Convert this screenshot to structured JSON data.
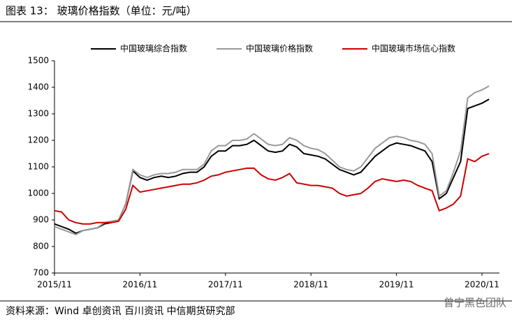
{
  "chart_data": {
    "type": "line",
    "title": "图表 13： 玻璃价格指数（单位：元/吨）",
    "source": "资料来源：Wind 卓创资讯 百川资讯 中信期货研究部",
    "watermark": "曾宁黑色团队",
    "categories": [
      "2015/11",
      null,
      null,
      null,
      null,
      null,
      null,
      null,
      null,
      null,
      null,
      null,
      "2016/11",
      null,
      null,
      null,
      null,
      null,
      null,
      null,
      null,
      null,
      null,
      null,
      "2017/11",
      null,
      null,
      null,
      null,
      null,
      null,
      null,
      null,
      null,
      null,
      null,
      "2018/11",
      null,
      null,
      null,
      null,
      null,
      null,
      null,
      null,
      null,
      null,
      null,
      "2019/11",
      null,
      null,
      null,
      null,
      null,
      null,
      null,
      null,
      null,
      null,
      null,
      "2020/11",
      null
    ],
    "series": [
      {
        "name": "中国玻璃综合指数",
        "color": "#000000",
        "values": [
          885,
          875,
          865,
          850,
          860,
          865,
          870,
          885,
          890,
          900,
          960,
          1085,
          1060,
          1050,
          1060,
          1065,
          1060,
          1065,
          1075,
          1080,
          1080,
          1100,
          1140,
          1160,
          1160,
          1180,
          1180,
          1185,
          1200,
          1180,
          1160,
          1155,
          1160,
          1185,
          1175,
          1150,
          1145,
          1140,
          1130,
          1110,
          1090,
          1080,
          1070,
          1080,
          1110,
          1140,
          1160,
          1180,
          1190,
          1185,
          1180,
          1170,
          1160,
          1120,
          980,
          1000,
          1060,
          1120,
          1320,
          1330,
          1340,
          1355
        ]
      },
      {
        "name": "中国玻璃价格指数",
        "color": "#999999",
        "values": [
          875,
          865,
          855,
          845,
          860,
          865,
          870,
          890,
          895,
          900,
          960,
          1090,
          1070,
          1060,
          1070,
          1075,
          1075,
          1080,
          1090,
          1090,
          1090,
          1110,
          1160,
          1180,
          1180,
          1200,
          1200,
          1205,
          1225,
          1205,
          1185,
          1180,
          1185,
          1210,
          1200,
          1180,
          1170,
          1165,
          1150,
          1125,
          1100,
          1090,
          1085,
          1100,
          1135,
          1170,
          1190,
          1210,
          1215,
          1210,
          1200,
          1195,
          1185,
          1150,
          990,
          1010,
          1080,
          1160,
          1360,
          1380,
          1390,
          1405
        ]
      },
      {
        "name": "中国玻璃市场信心指数",
        "color": "#cc0000",
        "values": [
          935,
          930,
          900,
          890,
          885,
          885,
          890,
          890,
          890,
          895,
          940,
          1030,
          1005,
          1010,
          1015,
          1020,
          1025,
          1030,
          1035,
          1035,
          1040,
          1050,
          1065,
          1070,
          1080,
          1085,
          1090,
          1095,
          1095,
          1070,
          1055,
          1050,
          1060,
          1075,
          1040,
          1035,
          1030,
          1030,
          1025,
          1020,
          1000,
          990,
          995,
          1000,
          1020,
          1045,
          1055,
          1050,
          1045,
          1050,
          1045,
          1030,
          1020,
          1010,
          935,
          945,
          960,
          990,
          1130,
          1120,
          1140,
          1150
        ]
      }
    ],
    "ylim": [
      700,
      1500
    ],
    "yticks": [
      700,
      800,
      900,
      1000,
      1100,
      1200,
      1300,
      1400,
      1500
    ],
    "legend": "top",
    "grid": false
  }
}
